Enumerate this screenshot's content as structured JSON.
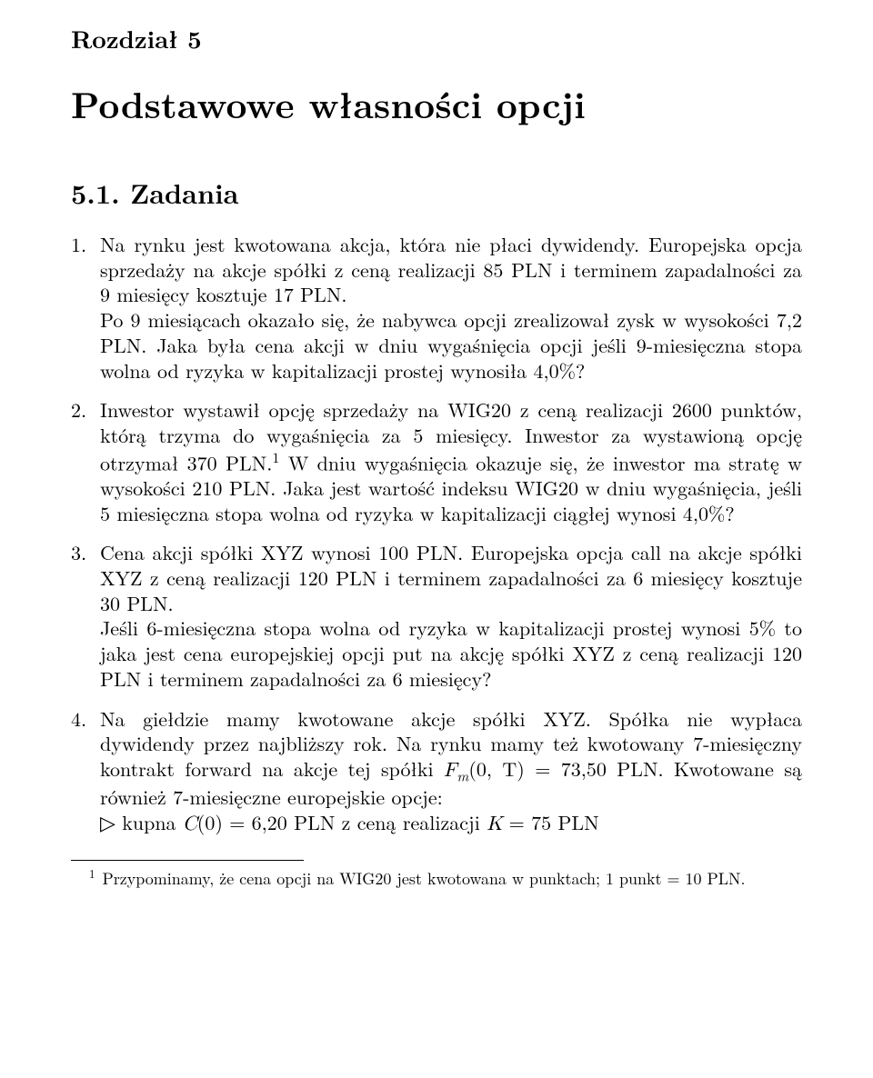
{
  "chapter": {
    "label": "Rozdział 5",
    "title": "Podstawowe własności opcji"
  },
  "section": {
    "number": "5.1.",
    "title": "Zadania"
  },
  "exercises": [
    {
      "text": "Na rynku jest kwotowana akcja, która nie płaci dywidendy. Europejska opcja sprzedaży na akcje spółki z ceną realizacji 85 PLN i terminem zapadalności za 9 miesięcy kosztuje 17 PLN.",
      "text2": "Po 9 miesiącach okazało się, że nabywca opcji zrealizował zysk w wysokości 7,2 PLN. Jaka była cena akcji w dniu wygaśnięcia opcji jeśli 9-miesięczna stopa wolna od ryzyka w kapitalizacji prostej wynosiła 4,0%?"
    },
    {
      "text_a": "Inwestor wystawił opcję sprzedaży na WIG20 z ceną realizacji 2600 punktów, którą trzyma do wygaśnięcia za 5 miesięcy. Inwestor za wystawioną opcję otrzymał 370 PLN.",
      "fn_mark": "1",
      "text_b": " W dniu wygaśnięcia okazuje się, że inwestor ma stratę w wysokości 210 PLN. Jaka jest wartość indeksu WIG20 w dniu wygaśnięcia, jeśli 5 miesięczna stopa wolna od ryzyka w kapitalizacji ciągłej wynosi 4,0%?"
    },
    {
      "text": "Cena akcji spółki XYZ wynosi 100 PLN. Europejska opcja call na akcje spółki XYZ z ceną realizacji 120 PLN i terminem zapadalności za 6 miesięcy kosztuje 30 PLN.",
      "text2": "Jeśli 6-miesięczna stopa wolna od ryzyka w kapitalizacji prostej wynosi 5% to jaka jest cena europejskiej opcji put na akcję spółki XYZ z ceną realizacji 120 PLN i terminem zapadalności za 6 miesięcy?"
    },
    {
      "text_a": "Na giełdzie mamy kwotowane akcje spółki XYZ. Spółka nie wypłaca dywidendy przez najbliższy rok. Na rynku mamy też kwotowany 7-miesięczny kontrakt forward na akcje tej spółki ",
      "forward_sym": "F",
      "forward_sub": "m",
      "forward_args": "(0, T) = 73,50 PLN",
      "text_b": ". Kwotowane są również 7-miesięczne europejskie opcje:",
      "bullet": "▷",
      "opt_a": " kupna ",
      "opt_sym": "C",
      "opt_args": "(0) = 6,20 PLN z ceną realizacji ",
      "k_sym": "K",
      "k_val": " = 75 PLN"
    }
  ],
  "footnote": {
    "mark": "1",
    "text": " Przypominamy, że cena opcji na WIG20 jest kwotowana w punktach; 1 punkt = 10 PLN."
  }
}
